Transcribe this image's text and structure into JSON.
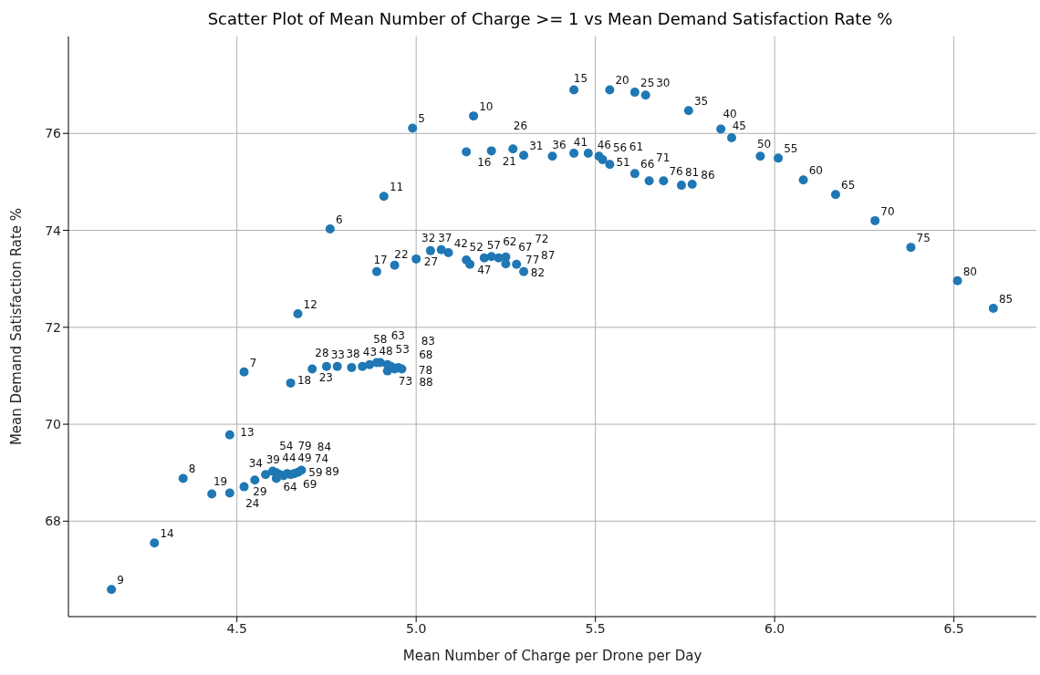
{
  "chart_data": {
    "type": "scatter",
    "title": "Scatter Plot of Mean Number of Charge >= 1 vs Mean Demand Satisfaction Rate %",
    "xlabel": "Mean Number of Charge per Drone per Day",
    "ylabel": "Mean Demand Satisfaction Rate %",
    "color": "#1f77b4",
    "marker": "circle",
    "grid": true,
    "xlim": [
      4.03,
      6.73
    ],
    "ylim": [
      66.03,
      78.0
    ],
    "xticks": [
      4.5,
      {
        "value": 5,
        "label": "5.0"
      },
      5.5,
      {
        "value": 6,
        "label": "6.0"
      },
      6.5
    ],
    "yticks": [
      68,
      70,
      72,
      74,
      76
    ],
    "x": [
      4.99,
      5.16,
      5.44,
      5.54,
      5.61,
      5.64,
      5.76,
      5.85,
      5.88,
      5.96,
      6.01,
      6.08,
      6.17,
      6.28,
      6.38,
      6.51,
      6.61,
      4.76,
      4.91,
      5.14,
      5.21,
      5.27,
      5.3,
      5.38,
      5.44,
      5.48,
      5.51,
      5.52,
      5.54,
      5.61,
      5.65,
      5.69,
      5.74,
      5.77,
      4.52,
      4.67,
      4.89,
      4.94,
      5.0,
      5.04,
      5.07,
      5.09,
      5.14,
      5.15,
      5.19,
      5.21,
      5.23,
      5.25,
      5.25,
      5.28,
      5.3,
      4.35,
      4.48,
      4.65,
      4.71,
      4.75,
      4.78,
      4.82,
      4.85,
      4.87,
      4.89,
      4.9,
      4.92,
      4.93,
      4.92,
      4.94,
      4.95,
      4.96,
      4.15,
      4.27,
      4.43,
      4.48,
      4.52,
      4.55,
      4.58,
      4.6,
      4.61,
      4.62,
      4.63,
      4.61,
      4.64,
      4.65,
      4.67,
      4.66,
      4.68
    ],
    "values": [
      76.11,
      76.36,
      76.9,
      76.9,
      76.85,
      76.79,
      76.47,
      76.09,
      75.91,
      75.53,
      75.49,
      75.04,
      74.74,
      74.2,
      73.65,
      72.96,
      72.39,
      74.03,
      74.7,
      75.62,
      75.64,
      75.68,
      75.55,
      75.53,
      75.59,
      75.59,
      75.53,
      75.46,
      75.36,
      75.17,
      75.02,
      75.02,
      74.93,
      74.95,
      71.08,
      72.28,
      73.15,
      73.28,
      73.41,
      73.58,
      73.6,
      73.54,
      73.39,
      73.3,
      73.43,
      73.46,
      73.43,
      73.45,
      73.31,
      73.3,
      73.15,
      68.88,
      69.78,
      70.85,
      71.14,
      71.19,
      71.19,
      71.17,
      71.19,
      71.23,
      71.27,
      71.27,
      71.23,
      71.19,
      71.1,
      71.14,
      71.17,
      71.14,
      66.59,
      67.55,
      68.56,
      68.58,
      68.71,
      68.85,
      68.96,
      69.03,
      69.0,
      68.96,
      68.94,
      68.88,
      68.98,
      68.96,
      69.01,
      68.98,
      69.05
    ],
    "annotations": [
      {
        "text": "5",
        "x": 4.99,
        "y": 76.11
      },
      {
        "text": "10",
        "x": 5.16,
        "y": 76.36
      },
      {
        "text": "15",
        "x": 5.44,
        "y": 76.9
      },
      {
        "text": "20",
        "x": 5.54,
        "y": 76.9
      },
      {
        "text": "25",
        "x": 5.61,
        "y": 76.85
      },
      {
        "text": "30",
        "x": 5.64,
        "y": 76.79
      },
      {
        "text": "35",
        "x": 5.76,
        "y": 76.47
      },
      {
        "text": "40",
        "x": 5.85,
        "y": 76.09
      },
      {
        "text": "45",
        "x": 5.88,
        "y": 75.91
      },
      {
        "text": "50",
        "x": 5.96,
        "y": 75.53
      },
      {
        "text": "55",
        "x": 6.01,
        "y": 75.49
      },
      {
        "text": "60",
        "x": 6.08,
        "y": 75.04
      },
      {
        "text": "65",
        "x": 6.17,
        "y": 74.74
      },
      {
        "text": "70",
        "x": 6.28,
        "y": 74.2
      },
      {
        "text": "75",
        "x": 6.38,
        "y": 73.65
      },
      {
        "text": "80",
        "x": 6.51,
        "y": 72.96
      },
      {
        "text": "85",
        "x": 6.61,
        "y": 72.39
      },
      {
        "text": "6",
        "x": 4.76,
        "y": 74.03
      },
      {
        "text": "11",
        "x": 4.91,
        "y": 74.7
      },
      {
        "text": "16",
        "x": 5.14,
        "y": 75.62
      },
      {
        "text": "21",
        "x": 5.21,
        "y": 75.64
      },
      {
        "text": "26",
        "x": 5.27,
        "y": 75.68
      },
      {
        "text": "31",
        "x": 5.3,
        "y": 75.55
      },
      {
        "text": "36",
        "x": 5.38,
        "y": 75.53
      },
      {
        "text": "41",
        "x": 5.44,
        "y": 75.59
      },
      {
        "text": "46",
        "x": 5.48,
        "y": 75.59
      },
      {
        "text": "51",
        "x": 5.51,
        "y": 75.53
      },
      {
        "text": "56",
        "x": 5.52,
        "y": 75.46
      },
      {
        "text": "61",
        "x": 5.54,
        "y": 75.36
      },
      {
        "text": "66",
        "x": 5.61,
        "y": 75.17
      },
      {
        "text": "71",
        "x": 5.65,
        "y": 75.02
      },
      {
        "text": "76",
        "x": 5.69,
        "y": 75.02
      },
      {
        "text": "81",
        "x": 5.74,
        "y": 74.93
      },
      {
        "text": "86",
        "x": 5.77,
        "y": 74.95
      },
      {
        "text": "7",
        "x": 4.52,
        "y": 71.08
      },
      {
        "text": "12",
        "x": 4.67,
        "y": 72.28
      },
      {
        "text": "17",
        "x": 4.89,
        "y": 73.15
      },
      {
        "text": "22",
        "x": 4.94,
        "y": 73.28
      },
      {
        "text": "27",
        "x": 5.0,
        "y": 73.41
      },
      {
        "text": "32",
        "x": 5.04,
        "y": 73.58
      },
      {
        "text": "37",
        "x": 5.07,
        "y": 73.6
      },
      {
        "text": "42",
        "x": 5.09,
        "y": 73.54
      },
      {
        "text": "47",
        "x": 5.14,
        "y": 73.39
      },
      {
        "text": "52",
        "x": 5.15,
        "y": 73.3
      },
      {
        "text": "57",
        "x": 5.19,
        "y": 73.43
      },
      {
        "text": "62",
        "x": 5.21,
        "y": 73.46
      },
      {
        "text": "67",
        "x": 5.23,
        "y": 73.43
      },
      {
        "text": "72",
        "x": 5.25,
        "y": 73.45
      },
      {
        "text": "77",
        "x": 5.25,
        "y": 73.31
      },
      {
        "text": "82",
        "x": 5.28,
        "y": 73.3
      },
      {
        "text": "87",
        "x": 5.3,
        "y": 73.15
      },
      {
        "text": "8",
        "x": 4.35,
        "y": 68.88
      },
      {
        "text": "13",
        "x": 4.48,
        "y": 69.78
      },
      {
        "text": "18",
        "x": 4.65,
        "y": 70.85
      },
      {
        "text": "23",
        "x": 4.71,
        "y": 71.14
      },
      {
        "text": "28",
        "x": 4.75,
        "y": 71.19
      },
      {
        "text": "33",
        "x": 4.78,
        "y": 71.19
      },
      {
        "text": "38",
        "x": 4.82,
        "y": 71.17
      },
      {
        "text": "43",
        "x": 4.85,
        "y": 71.19
      },
      {
        "text": "48",
        "x": 4.87,
        "y": 71.23
      },
      {
        "text": "53",
        "x": 4.89,
        "y": 71.27
      },
      {
        "text": "58",
        "x": 4.9,
        "y": 71.27
      },
      {
        "text": "63",
        "x": 4.92,
        "y": 71.23
      },
      {
        "text": "68",
        "x": 4.93,
        "y": 71.19
      },
      {
        "text": "73",
        "x": 4.92,
        "y": 71.1
      },
      {
        "text": "78",
        "x": 4.94,
        "y": 71.14
      },
      {
        "text": "83",
        "x": 4.95,
        "y": 71.17
      },
      {
        "text": "88",
        "x": 4.96,
        "y": 71.14
      },
      {
        "text": "9",
        "x": 4.15,
        "y": 66.59
      },
      {
        "text": "14",
        "x": 4.27,
        "y": 67.55
      },
      {
        "text": "19",
        "x": 4.43,
        "y": 68.56
      },
      {
        "text": "24",
        "x": 4.48,
        "y": 68.58
      },
      {
        "text": "29",
        "x": 4.52,
        "y": 68.71
      },
      {
        "text": "34",
        "x": 4.55,
        "y": 68.85
      },
      {
        "text": "39",
        "x": 4.58,
        "y": 68.96
      },
      {
        "text": "44",
        "x": 4.6,
        "y": 69.03
      },
      {
        "text": "49",
        "x": 4.61,
        "y": 69.0
      },
      {
        "text": "54",
        "x": 4.62,
        "y": 68.96
      },
      {
        "text": "59",
        "x": 4.63,
        "y": 68.94
      },
      {
        "text": "64",
        "x": 4.61,
        "y": 68.88
      },
      {
        "text": "69",
        "x": 4.64,
        "y": 68.98
      },
      {
        "text": "74",
        "x": 4.65,
        "y": 68.96
      },
      {
        "text": "79",
        "x": 4.67,
        "y": 69.01
      },
      {
        "text": "84",
        "x": 4.66,
        "y": 68.98
      },
      {
        "text": "89",
        "x": 4.68,
        "y": 69.05
      }
    ]
  }
}
